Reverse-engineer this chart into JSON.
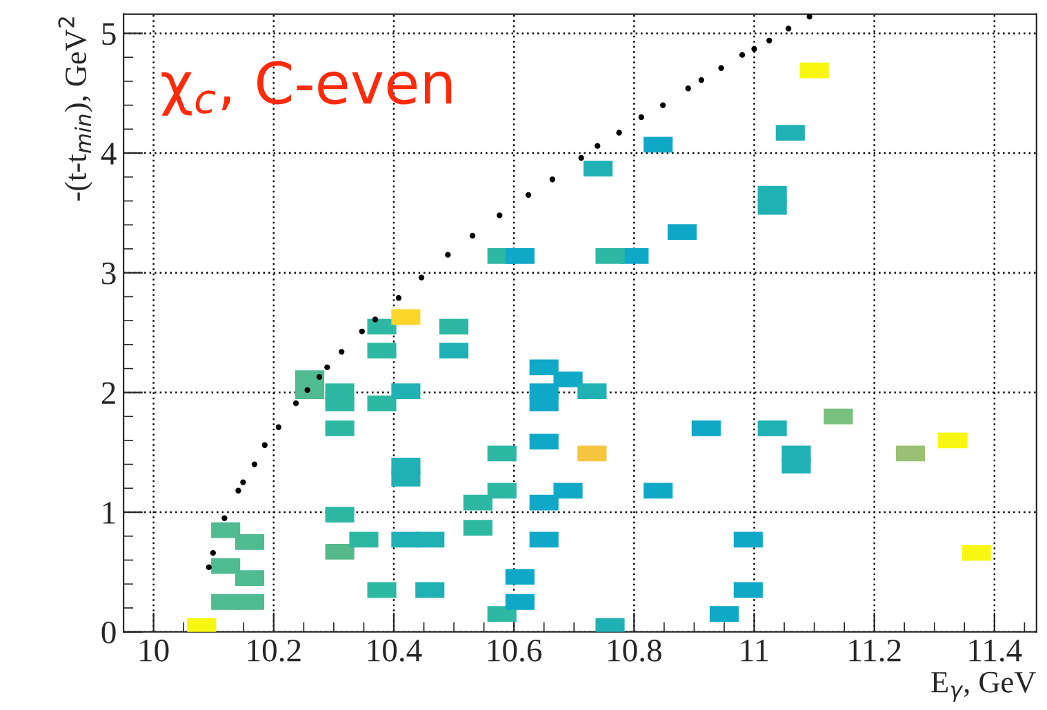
{
  "chart_data": {
    "type": "scatter",
    "xlabel": "E$_{γ}$, GeV",
    "ylabel": "-(t-t$_{min}$), GeV$^{2}$",
    "annotations": [
      "χ$_{c}$, C-even"
    ],
    "xlim": [
      9.95,
      11.47
    ],
    "ylim": [
      0,
      5.16
    ],
    "xticks": [
      10,
      10.2,
      10.4,
      10.6,
      10.8,
      11,
      11.2,
      11.4
    ],
    "yticks": [
      0,
      1,
      2,
      3,
      4,
      5
    ],
    "grid": true,
    "series": [
      {
        "marker": "square",
        "x": [
          10.08,
          10.12,
          10.16,
          10.12,
          10.16,
          10.12,
          10.16,
          10.26,
          10.26,
          10.31,
          10.31,
          10.31,
          10.31,
          10.31,
          10.35,
          10.38,
          10.38,
          10.38,
          10.38,
          10.42,
          10.42,
          10.42,
          10.42,
          10.42,
          10.46,
          10.46,
          10.5,
          10.5,
          10.54,
          10.54,
          10.58,
          10.58,
          10.58,
          10.58,
          10.61,
          10.61,
          10.61,
          10.65,
          10.65,
          10.65,
          10.65,
          10.65,
          10.65,
          10.69,
          10.69,
          10.73,
          10.73,
          10.74,
          10.76,
          10.8,
          10.76,
          10.84,
          10.84,
          10.88,
          10.92,
          10.95,
          10.99,
          10.99,
          11.03,
          11.03,
          11.03,
          11.07,
          11.07,
          11.06,
          11.1,
          11.14,
          11.26,
          11.33,
          11.37
        ],
        "values": [
          0.05,
          0.25,
          0.25,
          0.55,
          0.45,
          0.85,
          0.75,
          2.01,
          2.12,
          1.91,
          2.01,
          1.7,
          0.98,
          0.67,
          0.77,
          2.35,
          2.55,
          1.91,
          0.35,
          2.63,
          2.01,
          1.28,
          1.39,
          0.77,
          0.77,
          0.35,
          2.55,
          2.35,
          1.08,
          0.87,
          1.18,
          1.49,
          0.15,
          3.14,
          3.14,
          0.46,
          0.25,
          2.21,
          1.91,
          2.01,
          1.59,
          1.08,
          0.77,
          2.11,
          1.18,
          2.01,
          1.49,
          3.87,
          0.05,
          3.14,
          3.14,
          4.07,
          1.18,
          3.34,
          1.7,
          0.15,
          0.77,
          0.35,
          3.55,
          3.66,
          1.7,
          1.39,
          1.49,
          4.17,
          4.69,
          1.8,
          1.49,
          1.6,
          0.66
        ],
        "colors": [
          "#f7f711",
          "#50bb90",
          "#50bb90",
          "#50bb90",
          "#50bb90",
          "#50bb90",
          "#50bb90",
          "#50bb90",
          "#50bb90",
          "#2db8a3",
          "#2db8a3",
          "#2db8a3",
          "#2db8a3",
          "#55b98a",
          "#2db8a3",
          "#2db8a3",
          "#2db8a3",
          "#2db8a3",
          "#2db8a3",
          "#fdd52b",
          "#1fb1b3",
          "#1fb1b3",
          "#1fb1b3",
          "#1fb1b3",
          "#1fb1b3",
          "#1fb1b3",
          "#2db8a3",
          "#1fb1b3",
          "#2db8a3",
          "#2db8a3",
          "#2db8a3",
          "#2db8a3",
          "#2db8a3",
          "#2db8a3",
          "#0fa8c7",
          "#0fa8c7",
          "#0fa8c7",
          "#0fa8c7",
          "#0fa8c7",
          "#0fa8c7",
          "#0fa8c7",
          "#0fa8c7",
          "#0fa8c7",
          "#0fa8c7",
          "#0fa8c7",
          "#1fb1b3",
          "#f5c540",
          "#1fb1b3",
          "#1fb1b3",
          "#0fa8c7",
          "#2db8a3",
          "#0fa8c7",
          "#0fa8c7",
          "#0fa8c7",
          "#0fa8c7",
          "#0fa8c7",
          "#0fa8c7",
          "#0fa8c7",
          "#1fb1b3",
          "#1fb1b3",
          "#1fb1b3",
          "#1fb1b3",
          "#1fb1b3",
          "#1fb1b3",
          "#f7f711",
          "#79c07f",
          "#9ac173",
          "#f7f711",
          "#f7f711"
        ]
      },
      {
        "marker": "circle",
        "color": "#000000",
        "x": [
          10.092,
          10.099,
          10.118,
          10.141,
          10.149,
          10.168,
          10.185,
          10.208,
          10.237,
          10.256,
          10.276,
          10.289,
          10.313,
          10.347,
          10.369,
          10.408,
          10.446,
          10.49,
          10.531,
          10.576,
          10.624,
          10.664,
          10.712,
          10.739,
          10.775,
          10.812,
          10.848,
          10.89,
          10.912,
          10.945,
          10.98,
          11.0,
          11.025,
          11.057,
          11.092
        ],
        "values": [
          0.54,
          0.66,
          0.95,
          1.18,
          1.25,
          1.4,
          1.56,
          1.71,
          1.91,
          2.02,
          2.13,
          2.21,
          2.34,
          2.51,
          2.61,
          2.79,
          2.96,
          3.15,
          3.31,
          3.48,
          3.65,
          3.78,
          3.96,
          4.06,
          4.17,
          4.3,
          4.4,
          4.54,
          4.61,
          4.71,
          4.82,
          4.87,
          4.94,
          5.04,
          5.14
        ]
      }
    ]
  }
}
